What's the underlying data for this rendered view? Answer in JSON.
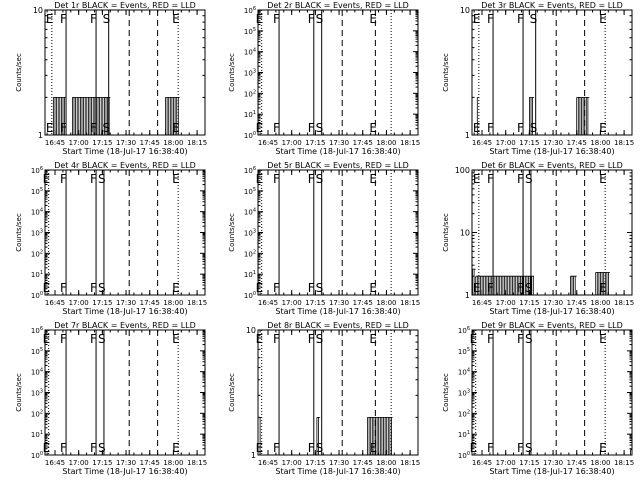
{
  "figure": {
    "time_labels": [
      "16:45",
      "17:00",
      "17:15",
      "17:30",
      "17:45",
      "18:00",
      "18:15"
    ],
    "ylabel": "Counts/sec"
  },
  "chart_data": [
    {
      "type": "line",
      "title": "Det 1r BLACK = Events, RED = LLD",
      "xlabel": "Start Time (18-Jul-17 16:38:40)",
      "ylabel": "Counts/sec",
      "y_scale": "log",
      "ylim": [
        1,
        10
      ],
      "y_ticks": [
        "1",
        "10"
      ],
      "xlim": [
        "16:38:40",
        "18:20"
      ],
      "x_ticks": [
        "16:45",
        "17:00",
        "17:15",
        "17:30",
        "17:45",
        "18:00",
        "18:15"
      ],
      "markers": [
        {
          "time": "16:43",
          "label": "E",
          "style": "dotted"
        },
        {
          "time": "16:52",
          "label": "F",
          "style": "solid"
        },
        {
          "time": "17:11",
          "label": "F",
          "style": "solid"
        },
        {
          "time": "17:19",
          "label": "S",
          "style": "solid"
        },
        {
          "time": "17:32",
          "label": "",
          "style": "dashed"
        },
        {
          "time": "17:50",
          "label": "",
          "style": "dashed"
        },
        {
          "time": "18:03",
          "label": "E",
          "style": "dotted"
        }
      ],
      "series": [
        {
          "segments": [
            [
              "16:44",
              "16:52",
              2
            ],
            [
              "16:56",
              "17:20",
              2
            ],
            [
              "17:55",
              "18:04",
              2
            ]
          ]
        }
      ]
    },
    {
      "type": "line",
      "title": "Det 2r BLACK = Events, RED = LLD",
      "xlabel": "Start Time (18-Jul-17 16:38:40)",
      "ylabel": "Counts/sec",
      "y_scale": "log",
      "ylim": [
        1,
        1000000
      ],
      "y_ticks": [
        "10^0",
        "10^1",
        "10^2",
        "10^3",
        "10^4",
        "10^5",
        "10^6"
      ],
      "xlim": [
        "16:38:40",
        "18:20"
      ],
      "x_ticks": [
        "16:45",
        "17:00",
        "17:15",
        "17:30",
        "17:45",
        "18:00",
        "18:15"
      ],
      "markers": [
        {
          "time": "16:41",
          "label": "E",
          "style": "dotted"
        },
        {
          "time": "16:52",
          "label": "F",
          "style": "solid"
        },
        {
          "time": "17:14",
          "label": "F",
          "style": "solid"
        },
        {
          "time": "17:19",
          "label": "S",
          "style": "solid"
        },
        {
          "time": "17:32",
          "label": "",
          "style": "dashed"
        },
        {
          "time": "17:53",
          "label": "E",
          "style": "dashed"
        },
        {
          "time": "18:03",
          "label": "",
          "style": "dotted"
        }
      ],
      "series": [
        {
          "segments": []
        }
      ]
    },
    {
      "type": "line",
      "title": "Det 3r BLACK = Events, RED = LLD",
      "xlabel": "Start Time (18-Jul-17 16:38:40)",
      "ylabel": "Counts/sec",
      "y_scale": "log",
      "ylim": [
        1,
        10
      ],
      "y_ticks": [
        "1",
        "10"
      ],
      "xlim": [
        "16:38:40",
        "18:20"
      ],
      "x_ticks": [
        "16:45",
        "17:00",
        "17:15",
        "17:30",
        "17:45",
        "18:00",
        "18:15"
      ],
      "markers": [
        {
          "time": "16:43",
          "label": "E",
          "style": "dotted"
        },
        {
          "time": "16:52",
          "label": "F",
          "style": "solid"
        },
        {
          "time": "17:11",
          "label": "F",
          "style": "solid"
        },
        {
          "time": "17:19",
          "label": "S",
          "style": "solid"
        },
        {
          "time": "17:32",
          "label": "",
          "style": "dashed"
        },
        {
          "time": "17:50",
          "label": "",
          "style": "dashed"
        },
        {
          "time": "18:03",
          "label": "E",
          "style": "dotted"
        }
      ],
      "series": [
        {
          "segments": [
            [
              "16:42",
              "16:43",
              2
            ],
            [
              "17:15",
              "17:18",
              2
            ],
            [
              "17:45",
              "17:53",
              2
            ]
          ]
        }
      ]
    },
    {
      "type": "line",
      "title": "Det 4r BLACK = Events, RED = LLD",
      "xlabel": "Start Time (18-Jul-17 16:38:40)",
      "ylabel": "Counts/sec",
      "y_scale": "log",
      "ylim": [
        1,
        1000000
      ],
      "y_ticks": [
        "10^0",
        "10^1",
        "10^2",
        "10^3",
        "10^4",
        "10^5",
        "10^6"
      ],
      "xlim": [
        "16:38:40",
        "18:20"
      ],
      "x_ticks": [
        "16:45",
        "17:00",
        "17:15",
        "17:30",
        "17:45",
        "18:00",
        "18:15"
      ],
      "markers": [
        {
          "time": "16:41",
          "label": "E",
          "style": "dotted"
        },
        {
          "time": "16:52",
          "label": "F",
          "style": "solid"
        },
        {
          "time": "17:11",
          "label": "F",
          "style": "solid"
        },
        {
          "time": "17:16",
          "label": "S",
          "style": "solid"
        },
        {
          "time": "17:32",
          "label": "",
          "style": "dashed"
        },
        {
          "time": "17:50",
          "label": "",
          "style": "dashed"
        },
        {
          "time": "18:03",
          "label": "E",
          "style": "dotted"
        }
      ],
      "series": [
        {
          "segments": []
        }
      ]
    },
    {
      "type": "line",
      "title": "Det 5r BLACK = Events, RED = LLD",
      "xlabel": "Start Time (18-Jul-17 16:38:40)",
      "ylabel": "Counts/sec",
      "y_scale": "log",
      "ylim": [
        1,
        1000000
      ],
      "y_ticks": [
        "10^0",
        "10^1",
        "10^2",
        "10^3",
        "10^4",
        "10^5",
        "10^6"
      ],
      "xlim": [
        "16:38:40",
        "18:20"
      ],
      "x_ticks": [
        "16:45",
        "17:00",
        "17:15",
        "17:30",
        "17:45",
        "18:00",
        "18:15"
      ],
      "markers": [
        {
          "time": "16:41",
          "label": "E",
          "style": "dotted"
        },
        {
          "time": "16:52",
          "label": "F",
          "style": "solid"
        },
        {
          "time": "17:14",
          "label": "F",
          "style": "solid"
        },
        {
          "time": "17:19",
          "label": "S",
          "style": "solid"
        },
        {
          "time": "17:32",
          "label": "",
          "style": "dashed"
        },
        {
          "time": "17:53",
          "label": "E",
          "style": "dashed"
        },
        {
          "time": "18:03",
          "label": "",
          "style": "dotted"
        }
      ],
      "series": [
        {
          "segments": []
        }
      ]
    },
    {
      "type": "line",
      "title": "Det 6r BLACK = Events, RED = LLD",
      "xlabel": "Start Time (18-Jul-17 16:38:40)",
      "ylabel": "Counts/sec",
      "y_scale": "log",
      "ylim": [
        1,
        100
      ],
      "y_ticks": [
        "1",
        "10",
        "100"
      ],
      "xlim": [
        "16:38:40",
        "18:20"
      ],
      "x_ticks": [
        "16:45",
        "17:00",
        "17:15",
        "17:30",
        "17:45",
        "18:00",
        "18:15"
      ],
      "markers": [
        {
          "time": "16:43",
          "label": "E",
          "style": "dotted"
        },
        {
          "time": "16:52",
          "label": "F",
          "style": "solid"
        },
        {
          "time": "17:11",
          "label": "F",
          "style": "solid"
        },
        {
          "time": "17:16",
          "label": "S",
          "style": "solid"
        },
        {
          "time": "17:32",
          "label": "",
          "style": "dashed"
        },
        {
          "time": "17:50",
          "label": "",
          "style": "dashed"
        },
        {
          "time": "18:03",
          "label": "E",
          "style": "dotted"
        }
      ],
      "series": [
        {
          "segments": [
            [
              "16:39",
              "16:41",
              2.6
            ],
            [
              "16:41",
              "17:18",
              2
            ],
            [
              "17:41",
              "17:45",
              2
            ],
            [
              "17:57",
              "18:06",
              2.3
            ]
          ]
        }
      ]
    },
    {
      "type": "line",
      "title": "Det 7r BLACK = Events, RED = LLD",
      "xlabel": "Start Time (18-Jul-17 16:38:40)",
      "ylabel": "Counts/sec",
      "y_scale": "log",
      "ylim": [
        1,
        1000000
      ],
      "y_ticks": [
        "10^0",
        "10^1",
        "10^2",
        "10^3",
        "10^4",
        "10^5",
        "10^6"
      ],
      "xlim": [
        "16:38:40",
        "18:20"
      ],
      "x_ticks": [
        "16:45",
        "17:00",
        "17:15",
        "17:30",
        "17:45",
        "18:00",
        "18:15"
      ],
      "markers": [
        {
          "time": "16:41",
          "label": "E",
          "style": "dotted"
        },
        {
          "time": "16:52",
          "label": "F",
          "style": "solid"
        },
        {
          "time": "17:11",
          "label": "F",
          "style": "solid"
        },
        {
          "time": "17:16",
          "label": "S",
          "style": "solid"
        },
        {
          "time": "17:32",
          "label": "",
          "style": "dashed"
        },
        {
          "time": "17:50",
          "label": "",
          "style": "dashed"
        },
        {
          "time": "18:03",
          "label": "E",
          "style": "dotted"
        }
      ],
      "series": [
        {
          "segments": []
        }
      ]
    },
    {
      "type": "line",
      "title": "Det 8r BLACK = Events, RED = LLD",
      "xlabel": "Start Time (18-Jul-17 16:38:40)",
      "ylabel": "Counts/sec",
      "y_scale": "log",
      "ylim": [
        1,
        10
      ],
      "y_ticks": [
        "1",
        "10"
      ],
      "xlim": [
        "16:38:40",
        "18:20"
      ],
      "x_ticks": [
        "16:45",
        "17:00",
        "17:15",
        "17:30",
        "17:45",
        "18:00",
        "18:15"
      ],
      "markers": [
        {
          "time": "16:41",
          "label": "E",
          "style": "dotted"
        },
        {
          "time": "16:52",
          "label": "F",
          "style": "solid"
        },
        {
          "time": "17:14",
          "label": "F",
          "style": "solid"
        },
        {
          "time": "17:19",
          "label": "S",
          "style": "solid"
        },
        {
          "time": "17:32",
          "label": "",
          "style": "dashed"
        },
        {
          "time": "17:53",
          "label": "E",
          "style": "dashed"
        },
        {
          "time": "18:03",
          "label": "",
          "style": "dotted"
        }
      ],
      "series": [
        {
          "segments": [
            [
              "16:40",
              "16:41",
              2
            ],
            [
              "17:16",
              "17:18",
              2
            ],
            [
              "17:48",
              "18:04",
              2
            ]
          ]
        }
      ]
    },
    {
      "type": "line",
      "title": "Det 9r BLACK = Events, RED = LLD",
      "xlabel": "Start Time (18-Jul-17 16:38:40)",
      "ylabel": "Counts/sec",
      "y_scale": "log",
      "ylim": [
        1,
        1000000
      ],
      "y_ticks": [
        "10^0",
        "10^1",
        "10^2",
        "10^3",
        "10^4",
        "10^5",
        "10^6"
      ],
      "xlim": [
        "16:38:40",
        "18:20"
      ],
      "x_ticks": [
        "16:45",
        "17:00",
        "17:15",
        "17:30",
        "17:45",
        "18:00",
        "18:15"
      ],
      "markers": [
        {
          "time": "16:41",
          "label": "E",
          "style": "dotted"
        },
        {
          "time": "16:52",
          "label": "F",
          "style": "solid"
        },
        {
          "time": "17:11",
          "label": "F",
          "style": "solid"
        },
        {
          "time": "17:16",
          "label": "S",
          "style": "solid"
        },
        {
          "time": "17:32",
          "label": "",
          "style": "dashed"
        },
        {
          "time": "17:50",
          "label": "",
          "style": "dashed"
        },
        {
          "time": "18:03",
          "label": "E",
          "style": "dotted"
        }
      ],
      "series": [
        {
          "segments": [
            [
              "18:19",
              "18:20",
              1.8
            ]
          ]
        }
      ]
    }
  ]
}
